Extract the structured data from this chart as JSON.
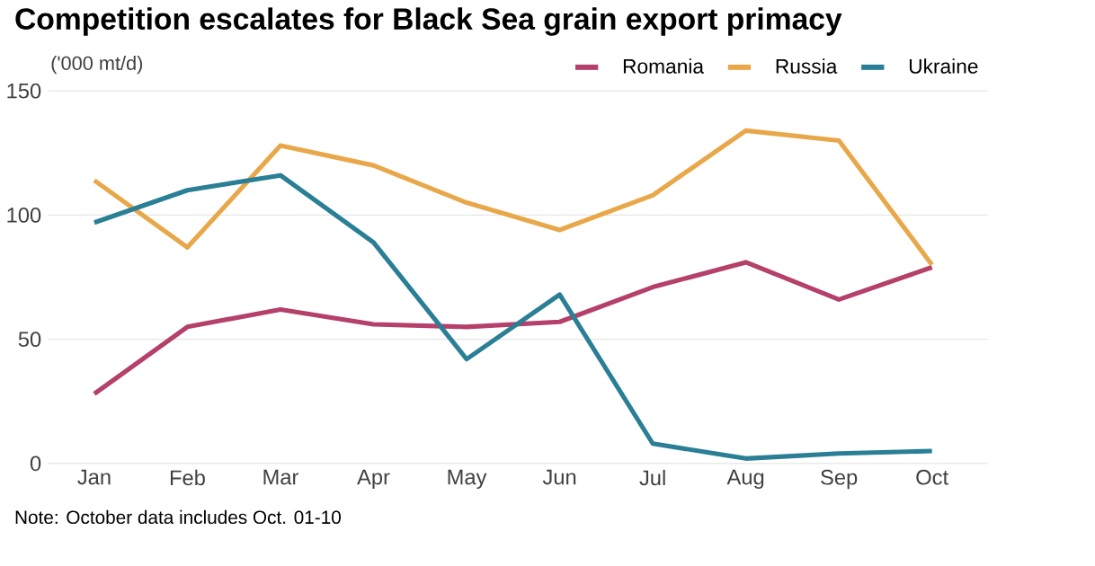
{
  "chart_data": {
    "type": "line",
    "title": "Competition escalates for Black Sea grain export primacy",
    "ylabel": "('000 mt/d)",
    "categories": [
      "Jan",
      "Feb",
      "Mar",
      "Apr",
      "May",
      "Jun",
      "Jul",
      "Aug",
      "Sep",
      "Oct"
    ],
    "series": [
      {
        "name": "Romania",
        "color": "#b5406a",
        "values": [
          28,
          55,
          62,
          56,
          55,
          57,
          71,
          81,
          66,
          79
        ]
      },
      {
        "name": "Russia",
        "color": "#e8a84a",
        "values": [
          114,
          87,
          128,
          120,
          105,
          94,
          108,
          134,
          130,
          80
        ]
      },
      {
        "name": "Ukraine",
        "color": "#2a7f96",
        "values": [
          97,
          110,
          116,
          89,
          42,
          68,
          8,
          2,
          4,
          5
        ]
      }
    ],
    "ylim": [
      0,
      150
    ],
    "yticks": [
      0,
      50,
      100,
      150
    ],
    "grid": "y",
    "legend": "top right",
    "marker": "none",
    "line_style": "solid",
    "annotations": [
      "Note: October data includes Oct. 01-10"
    ]
  }
}
